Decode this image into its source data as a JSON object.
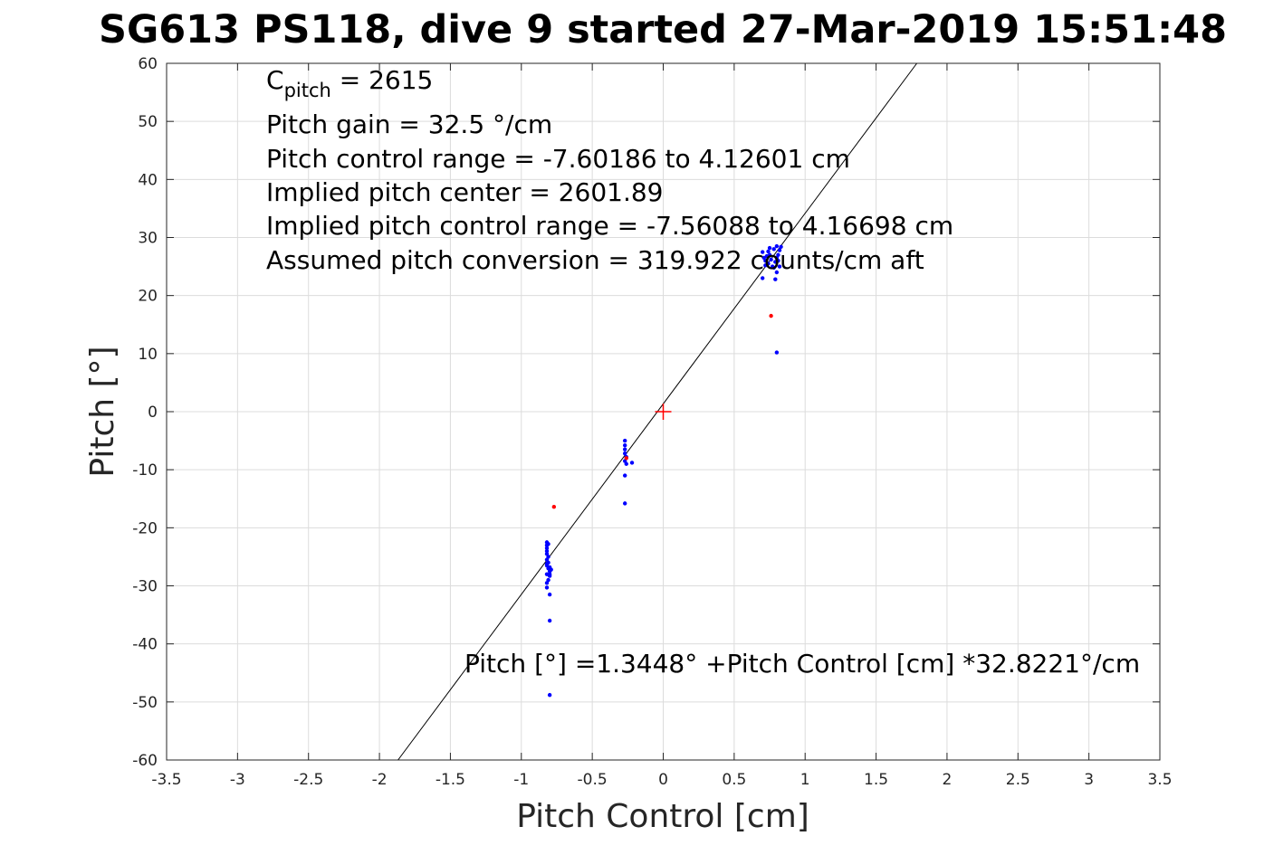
{
  "chart_data": {
    "type": "scatter",
    "title": "SG613 PS118, dive 9 started 27-Mar-2019 15:51:48",
    "xlabel": "Pitch Control [cm]",
    "ylabel": "Pitch [°]",
    "xlim": [
      -3.5,
      3.5
    ],
    "ylim": [
      -60,
      60
    ],
    "x_ticks": [
      -3.5,
      -3,
      -2.5,
      -2,
      -1.5,
      -1,
      -0.5,
      0,
      0.5,
      1,
      1.5,
      2,
      2.5,
      3,
      3.5
    ],
    "x_tick_labels": [
      "-3.5",
      "-3",
      "-2.5",
      "-2",
      "-1.5",
      "-1",
      "-0.5",
      "0",
      "0.5",
      "1",
      "1.5",
      "2",
      "2.5",
      "3",
      "3.5"
    ],
    "y_ticks": [
      -60,
      -50,
      -40,
      -30,
      -20,
      -10,
      0,
      10,
      20,
      30,
      40,
      50,
      60
    ],
    "y_tick_labels": [
      "-60",
      "-50",
      "-40",
      "-30",
      "-20",
      "-10",
      "0",
      "10",
      "20",
      "30",
      "40",
      "50",
      "60"
    ],
    "grid": true,
    "fit_line": {
      "intercept": 1.3448,
      "slope": 32.8221,
      "color": "#000000"
    },
    "center_marker": {
      "x": 0,
      "y": 0,
      "color": "#ff0000"
    },
    "series": [
      {
        "color": "#0000ff",
        "points": [
          [
            -0.82,
            -22.5
          ],
          [
            -0.82,
            -23.0
          ],
          [
            -0.82,
            -23.5
          ],
          [
            -0.82,
            -24.0
          ],
          [
            -0.82,
            -24.5
          ],
          [
            -0.81,
            -25.0
          ],
          [
            -0.82,
            -25.5
          ],
          [
            -0.81,
            -26.0
          ],
          [
            -0.82,
            -26.5
          ],
          [
            -0.81,
            -27.0
          ],
          [
            -0.8,
            -27.5
          ],
          [
            -0.82,
            -28.0
          ],
          [
            -0.8,
            -28.3
          ],
          [
            -0.81,
            -29.0
          ],
          [
            -0.82,
            -29.5
          ],
          [
            -0.82,
            -30.3
          ],
          [
            -0.8,
            -31.5
          ],
          [
            -0.8,
            -36.0
          ],
          [
            -0.8,
            -48.8
          ],
          [
            -0.8,
            -26.8
          ],
          [
            -0.79,
            -27.2
          ],
          [
            -0.8,
            -28.0
          ],
          [
            -0.81,
            -22.8
          ],
          [
            -0.82,
            -26.2
          ],
          [
            -0.27,
            -5.0
          ],
          [
            -0.27,
            -5.8
          ],
          [
            -0.27,
            -6.5
          ],
          [
            -0.27,
            -7.2
          ],
          [
            -0.26,
            -7.8
          ],
          [
            -0.27,
            -8.5
          ],
          [
            -0.26,
            -9.0
          ],
          [
            -0.22,
            -8.8
          ],
          [
            -0.27,
            -11.0
          ],
          [
            -0.27,
            -15.8
          ],
          [
            0.7,
            27.5
          ],
          [
            0.72,
            26.0
          ],
          [
            0.75,
            27.0
          ],
          [
            0.78,
            28.0
          ],
          [
            0.8,
            26.5
          ],
          [
            0.82,
            27.8
          ],
          [
            0.74,
            25.5
          ],
          [
            0.77,
            25.0
          ],
          [
            0.8,
            24.0
          ],
          [
            0.79,
            25.8
          ],
          [
            0.73,
            26.8
          ],
          [
            0.76,
            26.2
          ],
          [
            0.81,
            27.0
          ],
          [
            0.78,
            24.8
          ],
          [
            0.83,
            28.4
          ],
          [
            0.71,
            26.5
          ],
          [
            0.74,
            27.6
          ],
          [
            0.8,
            28.5
          ],
          [
            0.7,
            23.0
          ],
          [
            0.79,
            22.8
          ],
          [
            0.8,
            10.2
          ],
          [
            0.82,
            25.0
          ],
          [
            0.75,
            28.2
          ],
          [
            0.72,
            25.2
          ],
          [
            0.81,
            26.0
          ]
        ]
      },
      {
        "color": "#ff0000",
        "points": [
          [
            -0.77,
            -16.4
          ],
          [
            -0.26,
            -8.0
          ],
          [
            0.76,
            16.5
          ]
        ]
      }
    ],
    "annotation_lines": [
      {
        "main": "C",
        "sub": "pitch",
        "rest": " = 2615"
      },
      {
        "main": "Pitch gain = 32.5 °/cm"
      },
      {
        "main": "Pitch control range = -7.60186 to 4.12601 cm"
      },
      {
        "main": "Implied pitch center = 2601.89"
      },
      {
        "main": "Implied pitch control range = -7.56088 to 4.16698 cm"
      },
      {
        "main": "Assumed pitch conversion = 319.922 counts/cm aft"
      }
    ],
    "fit_label": "Pitch [°] =1.3448° +Pitch Control [cm] *32.8221°/cm"
  }
}
